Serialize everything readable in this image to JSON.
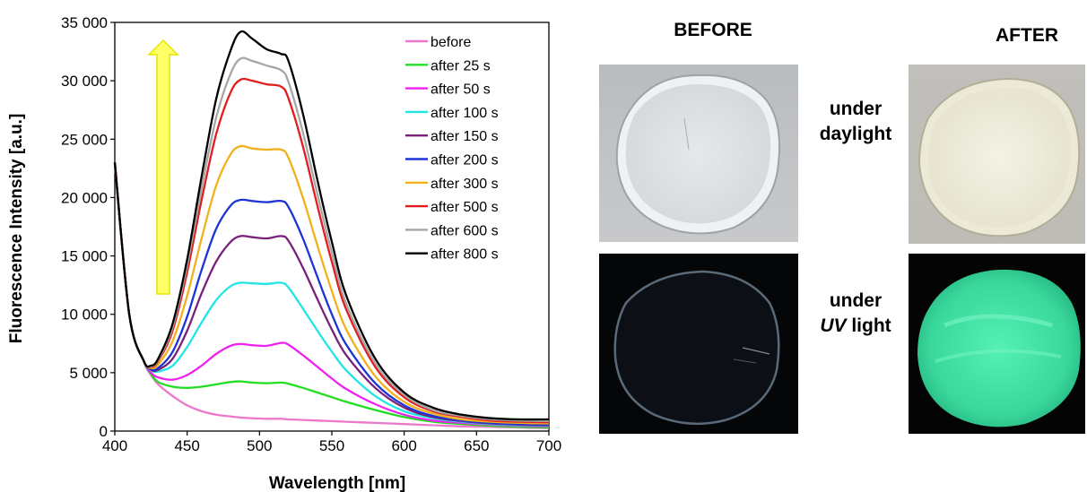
{
  "chart_data": {
    "type": "line",
    "xlabel": "Wavelength [nm]",
    "ylabel": "Fluorescence Intensity [a.u.]",
    "xlim": [
      400,
      700
    ],
    "ylim": [
      0,
      35000
    ],
    "x_ticks": [
      "400",
      "450",
      "500",
      "550",
      "600",
      "650",
      "700"
    ],
    "y_ticks": [
      "0",
      "5 000",
      "10 000",
      "15 000",
      "20 000",
      "25 000",
      "30 000",
      "35 000"
    ],
    "grid": false,
    "legend_position": "top-right",
    "x": [
      400,
      410,
      420,
      425,
      430,
      440,
      450,
      460,
      470,
      480,
      487,
      495,
      505,
      515,
      520,
      530,
      540,
      550,
      560,
      580,
      600,
      620,
      640,
      660,
      680,
      700
    ],
    "series": [
      {
        "name": "before",
        "color": "#ee77cc",
        "values": [
          23000,
          10000,
          6000,
          4800,
          4000,
          3000,
          2200,
          1700,
          1400,
          1250,
          1150,
          1100,
          1050,
          1050,
          1000,
          950,
          900,
          850,
          800,
          700,
          600,
          500,
          400,
          350,
          300,
          250
        ]
      },
      {
        "name": "after 25 s",
        "color": "#22dd22",
        "values": [
          23000,
          10000,
          6000,
          4900,
          4200,
          3800,
          3700,
          3800,
          4000,
          4200,
          4250,
          4150,
          4100,
          4150,
          4050,
          3700,
          3300,
          2900,
          2500,
          1800,
          1200,
          800,
          600,
          450,
          350,
          300
        ]
      },
      {
        "name": "after 50 s",
        "color": "#ee22ee",
        "values": [
          23000,
          10000,
          6000,
          5000,
          4600,
          4400,
          4800,
          5600,
          6600,
          7300,
          7450,
          7350,
          7300,
          7550,
          7400,
          6500,
          5500,
          4500,
          3600,
          2300,
          1400,
          900,
          700,
          550,
          450,
          400
        ]
      },
      {
        "name": "after 100 s",
        "color": "#22e5e5",
        "values": [
          23000,
          10000,
          6000,
          5200,
          5100,
          5600,
          7200,
          9300,
          11200,
          12400,
          12700,
          12650,
          12600,
          12700,
          12300,
          10500,
          8600,
          6800,
          5200,
          3000,
          1700,
          1100,
          800,
          600,
          500,
          450
        ]
      },
      {
        "name": "after 150 s",
        "color": "#7a1f7a",
        "values": [
          23000,
          10000,
          6000,
          5250,
          5250,
          6200,
          8600,
          11800,
          14500,
          16200,
          16700,
          16600,
          16500,
          16700,
          16300,
          14000,
          11300,
          8700,
          6500,
          3700,
          2000,
          1200,
          850,
          650,
          550,
          500
        ]
      },
      {
        "name": "after 200 s",
        "color": "#1c34d6",
        "values": [
          23000,
          10000,
          6000,
          5300,
          5400,
          6800,
          9800,
          13800,
          17300,
          19300,
          19800,
          19700,
          19600,
          19700,
          19200,
          16500,
          13200,
          10000,
          7400,
          4100,
          2200,
          1300,
          900,
          700,
          600,
          550
        ]
      },
      {
        "name": "after 300 s",
        "color": "#f2b11b",
        "values": [
          23000,
          10000,
          6000,
          5400,
          5700,
          7700,
          11600,
          16500,
          21000,
          23700,
          24400,
          24200,
          24100,
          24100,
          23400,
          20000,
          15900,
          12000,
          8700,
          4700,
          2500,
          1500,
          1000,
          800,
          700,
          650
        ]
      },
      {
        "name": "after 500 s",
        "color": "#e21d1d",
        "values": [
          23000,
          10000,
          6000,
          5500,
          6000,
          8600,
          13600,
          19800,
          25400,
          29000,
          30100,
          30000,
          29700,
          29500,
          28500,
          24400,
          19300,
          14500,
          10400,
          5500,
          2900,
          1700,
          1200,
          900,
          800,
          750
        ]
      },
      {
        "name": "after 600 s",
        "color": "#a6a6a6",
        "values": [
          23000,
          10000,
          6000,
          5550,
          6100,
          8900,
          14200,
          20800,
          26800,
          30600,
          31900,
          31700,
          31300,
          30900,
          29900,
          25600,
          20300,
          15300,
          10900,
          5800,
          3100,
          1800,
          1300,
          1000,
          900,
          850
        ]
      },
      {
        "name": "after 800 s",
        "color": "#000000",
        "values": [
          23000,
          10000,
          6000,
          5600,
          6200,
          9200,
          14700,
          21800,
          28400,
          32600,
          34200,
          33600,
          32700,
          32300,
          31700,
          27200,
          21500,
          16200,
          11600,
          6200,
          3300,
          2000,
          1400,
          1100,
          1000,
          1000
        ]
      }
    ]
  },
  "photos": {
    "before_label": "BEFORE",
    "after_label": "AFTER",
    "daylight_line1": "under",
    "daylight_line2": "daylight",
    "uv_line1_em": "",
    "uv_line1": "under",
    "uv_word": "UV",
    "uv_rest": " light"
  },
  "colors": {
    "arrow_fill": "#ffff66",
    "arrow_stroke": "#e6e600",
    "uv_glow": "#3ee8a8"
  }
}
